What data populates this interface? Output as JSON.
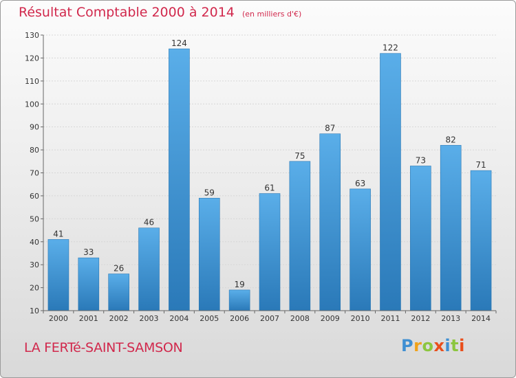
{
  "chart_data": {
    "type": "bar",
    "title": "Résultat Comptable 2000 à 2014",
    "subtitle": "(en milliers d'€)",
    "categories": [
      "2000",
      "2001",
      "2002",
      "2003",
      "2004",
      "2005",
      "2006",
      "2007",
      "2008",
      "2009",
      "2010",
      "2011",
      "2012",
      "2013",
      "2014"
    ],
    "values": [
      41,
      33,
      26,
      46,
      124,
      59,
      19,
      61,
      75,
      87,
      63,
      122,
      73,
      82,
      71
    ],
    "ylim": [
      10,
      130
    ],
    "yticks": [
      10,
      20,
      30,
      40,
      50,
      60,
      70,
      80,
      90,
      100,
      110,
      120,
      130
    ],
    "xlabel": "",
    "ylabel": "",
    "grid": true,
    "bar_color": "#3a96d8"
  },
  "location": "LA FERTé-SAINT-SAMSON",
  "logo": {
    "letters": [
      "P",
      "r",
      "o",
      "x",
      "i",
      "t",
      "i"
    ],
    "colors": [
      "#3f8fd2",
      "#f0a21a",
      "#8cc63f",
      "#e94e1b",
      "#3f8fd2",
      "#8cc63f",
      "#e94e1b"
    ]
  }
}
